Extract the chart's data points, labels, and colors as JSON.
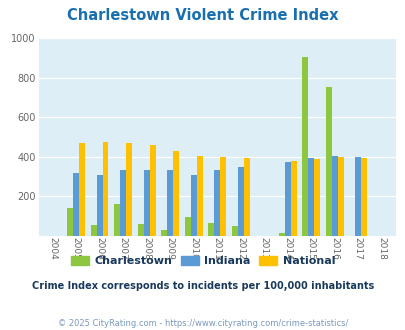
{
  "title": "Charlestown Violent Crime Index",
  "title_color": "#1a6faf",
  "years": [
    2004,
    2005,
    2006,
    2007,
    2008,
    2009,
    2010,
    2011,
    2012,
    2013,
    2014,
    2015,
    2016,
    2017,
    2018
  ],
  "charlestown": [
    0,
    140,
    55,
    163,
    60,
    30,
    95,
    65,
    50,
    0,
    15,
    905,
    750,
    0,
    0
  ],
  "indiana": [
    0,
    320,
    310,
    335,
    335,
    335,
    310,
    335,
    350,
    0,
    375,
    395,
    405,
    400,
    0
  ],
  "national": [
    0,
    467,
    475,
    468,
    457,
    430,
    405,
    397,
    394,
    0,
    377,
    390,
    400,
    394,
    0
  ],
  "charlestown_color": "#8dc63f",
  "indiana_color": "#5b9bd5",
  "national_color": "#ffc000",
  "bg_color": "#ddeef6",
  "ylim": [
    0,
    1000
  ],
  "yticks": [
    0,
    200,
    400,
    600,
    800,
    1000
  ],
  "subtitle": "Crime Index corresponds to incidents per 100,000 inhabitants",
  "subtitle_color": "#1a3a5c",
  "footer": "© 2025 CityRating.com - https://www.cityrating.com/crime-statistics/",
  "footer_color": "#7a9abf",
  "legend_labels": [
    "Charlestown",
    "Indiana",
    "National"
  ],
  "bar_width": 0.25
}
